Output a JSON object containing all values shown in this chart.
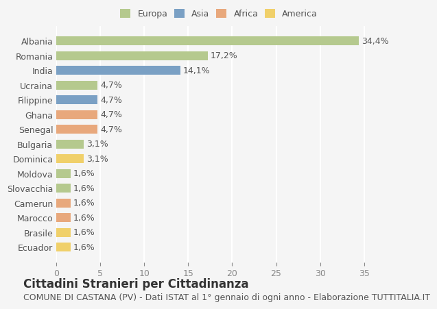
{
  "countries": [
    "Albania",
    "Romania",
    "India",
    "Ucraina",
    "Filippine",
    "Ghana",
    "Senegal",
    "Bulgaria",
    "Dominica",
    "Moldova",
    "Slovacchia",
    "Camerun",
    "Marocco",
    "Brasile",
    "Ecuador"
  ],
  "values": [
    34.4,
    17.2,
    14.1,
    4.7,
    4.7,
    4.7,
    4.7,
    3.1,
    3.1,
    1.6,
    1.6,
    1.6,
    1.6,
    1.6,
    1.6
  ],
  "labels": [
    "34,4%",
    "17,2%",
    "14,1%",
    "4,7%",
    "4,7%",
    "4,7%",
    "4,7%",
    "3,1%",
    "3,1%",
    "1,6%",
    "1,6%",
    "1,6%",
    "1,6%",
    "1,6%",
    "1,6%"
  ],
  "colors": [
    "#b5c98e",
    "#b5c98e",
    "#7aa0c4",
    "#b5c98e",
    "#7aa0c4",
    "#e8a87c",
    "#e8a87c",
    "#b5c98e",
    "#f0d06a",
    "#b5c98e",
    "#b5c98e",
    "#e8a87c",
    "#e8a87c",
    "#f0d06a",
    "#f0d06a"
  ],
  "legend": {
    "Europa": "#b5c98e",
    "Asia": "#7aa0c4",
    "Africa": "#e8a87c",
    "America": "#f0d06a"
  },
  "xlim": [
    0,
    37
  ],
  "xticks": [
    0,
    5,
    10,
    15,
    20,
    25,
    30,
    35
  ],
  "title": "Cittadini Stranieri per Cittadinanza",
  "subtitle": "COMUNE DI CASTANA (PV) - Dati ISTAT al 1° gennaio di ogni anno - Elaborazione TUTTITALIA.IT",
  "bg_color": "#f5f5f5",
  "grid_color": "#ffffff",
  "bar_height": 0.6,
  "label_fontsize": 9,
  "tick_fontsize": 9,
  "title_fontsize": 12,
  "subtitle_fontsize": 9
}
